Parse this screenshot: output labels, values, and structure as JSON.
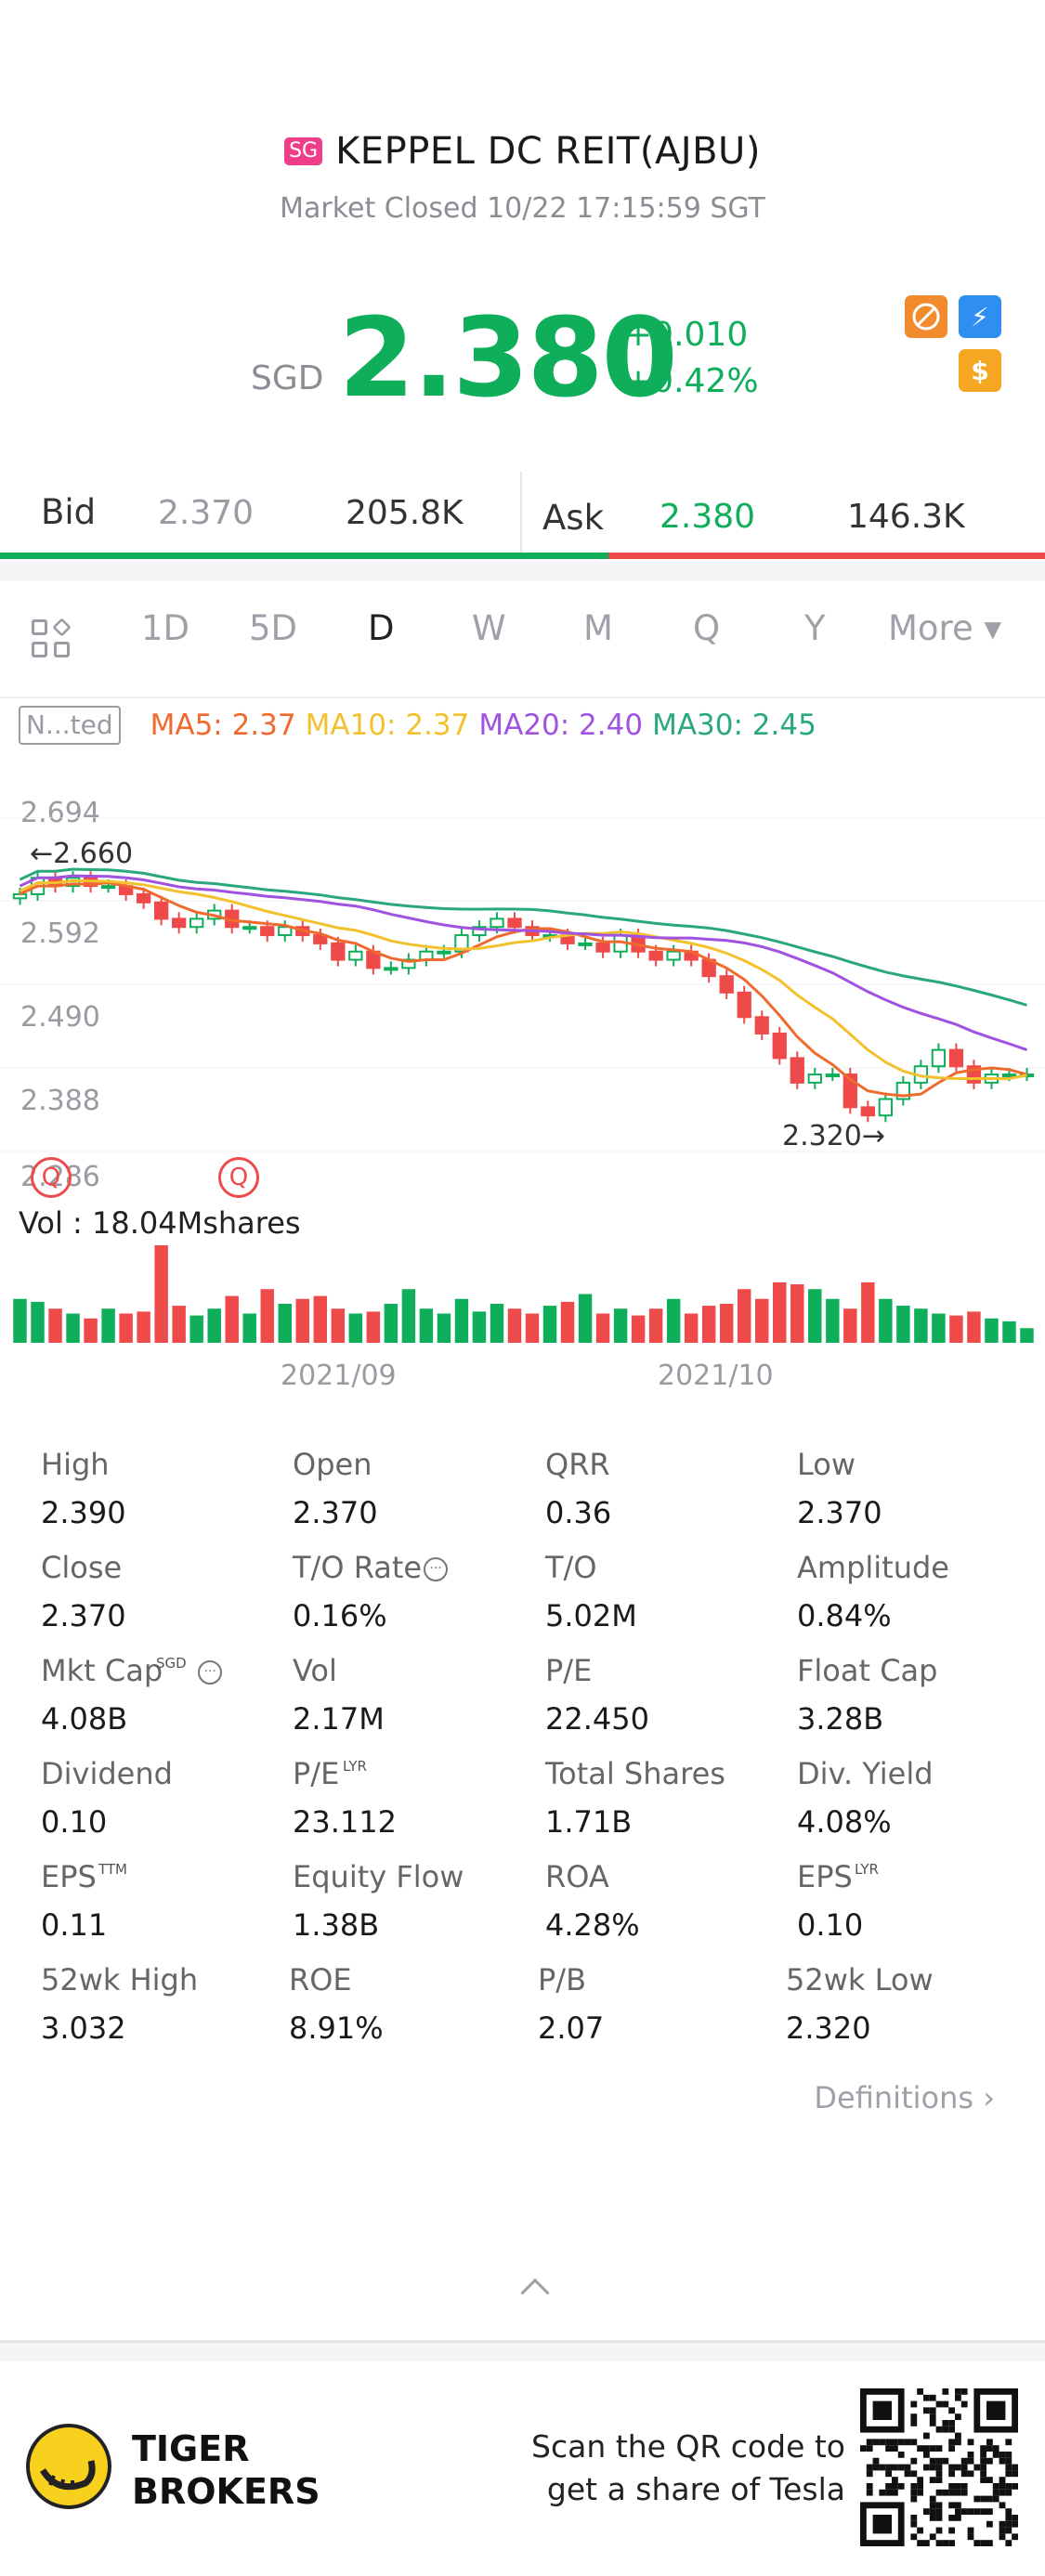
{
  "header": {
    "market_flag": "SG",
    "name": "KEPPEL DC REIT(AJBU)",
    "status": "Market Closed 10/22 17:15:59 SGT",
    "currency": "SGD",
    "price": "2.380",
    "change_abs": "+0.010",
    "change_pct": "+0.42%",
    "icons": [
      "no-short-icon",
      "lightning-level1-icon",
      "dollar-icon"
    ]
  },
  "bidask": {
    "bid_label": "Bid",
    "bid_price": "2.370",
    "bid_size": "205.8K",
    "ask_label": "Ask",
    "ask_price": "2.380",
    "ask_size": "146.3K"
  },
  "tabs": [
    "1D",
    "5D",
    "D",
    "W",
    "M",
    "Q",
    "Y",
    "More ▾"
  ],
  "active_tab": "D",
  "indicators": {
    "mode": "N...ted",
    "ma5": "MA5: 2.37",
    "ma10": "MA10: 2.37",
    "ma20": "MA20: 2.40",
    "ma30": "MA30: 2.45"
  },
  "colors": {
    "up": "#0fae5a",
    "down": "#ef4a4a",
    "ma5": "#f06a2e",
    "ma10": "#f2c12e",
    "ma20": "#a052e0",
    "ma30": "#2aa87c"
  },
  "chart_data": {
    "type": "candlestick",
    "y_ticks": [
      "2.694",
      "2.592",
      "2.490",
      "2.388",
      "2.286"
    ],
    "ylim": [
      2.286,
      2.694
    ],
    "x_ticks": [
      "2021/09",
      "2021/10"
    ],
    "high_marker": "2.660",
    "low_marker": "2.320",
    "volume_label": "Vol  : 18.04Mshares",
    "closes": [
      2.6,
      2.62,
      2.61,
      2.62,
      2.61,
      2.61,
      2.6,
      2.59,
      2.57,
      2.56,
      2.57,
      2.58,
      2.56,
      2.56,
      2.55,
      2.56,
      2.55,
      2.54,
      2.52,
      2.53,
      2.51,
      2.51,
      2.52,
      2.53,
      2.53,
      2.55,
      2.56,
      2.57,
      2.56,
      2.55,
      2.55,
      2.54,
      2.54,
      2.53,
      2.55,
      2.53,
      2.52,
      2.53,
      2.52,
      2.5,
      2.48,
      2.45,
      2.43,
      2.4,
      2.37,
      2.38,
      2.38,
      2.34,
      2.33,
      2.35,
      2.37,
      2.39,
      2.41,
      2.39,
      2.37,
      2.38,
      2.38,
      2.38
    ],
    "volumes": [
      0.45,
      0.42,
      0.35,
      0.3,
      0.25,
      0.35,
      0.3,
      0.32,
      1.0,
      0.38,
      0.28,
      0.35,
      0.48,
      0.3,
      0.55,
      0.4,
      0.45,
      0.48,
      0.35,
      0.3,
      0.32,
      0.4,
      0.55,
      0.35,
      0.3,
      0.45,
      0.32,
      0.4,
      0.35,
      0.3,
      0.38,
      0.42,
      0.5,
      0.3,
      0.35,
      0.28,
      0.35,
      0.45,
      0.3,
      0.38,
      0.4,
      0.55,
      0.45,
      0.62,
      0.6,
      0.55,
      0.45,
      0.35,
      0.62,
      0.45,
      0.38,
      0.35,
      0.3,
      0.28,
      0.32,
      0.25,
      0.22,
      0.15
    ],
    "q_markers": [
      "Q",
      "Q"
    ]
  },
  "stats": [
    {
      "k": "High",
      "v": "2.390"
    },
    {
      "k": "Open",
      "v": "2.370"
    },
    {
      "k": "QRR",
      "v": "0.36"
    },
    {
      "k": "Low",
      "v": "2.370"
    },
    {
      "k": "Close",
      "v": "2.370"
    },
    {
      "k": "T/O Rate",
      "v": "0.16%"
    },
    {
      "k": "T/O",
      "v": "5.02M"
    },
    {
      "k": "Amplitude",
      "v": "0.84%"
    },
    {
      "k": "Mkt Cap",
      "v": "4.08B"
    },
    {
      "k": "Vol",
      "v": "2.17M"
    },
    {
      "k": "P/E",
      "v": "22.450"
    },
    {
      "k": "Float Cap",
      "v": "3.28B"
    },
    {
      "k": "Dividend",
      "v": "0.10"
    },
    {
      "k": "P/E",
      "v": "23.112"
    },
    {
      "k": "Total Shares",
      "v": "1.71B"
    },
    {
      "k": "Div. Yield",
      "v": "4.08%"
    },
    {
      "k": "EPS",
      "v": "0.11"
    },
    {
      "k": "Equity Flow",
      "v": "1.38B"
    },
    {
      "k": "ROA",
      "v": "4.28%"
    },
    {
      "k": "EPS",
      "v": "0.10"
    },
    {
      "k": "52wk High",
      "v": "3.032"
    },
    {
      "k": "ROE",
      "v": "8.91%"
    },
    {
      "k": "P/B",
      "v": "2.07"
    },
    {
      "k": "52wk Low",
      "v": "2.320"
    }
  ],
  "stat_sups": {
    "sgd": "SGD",
    "lyr": "LYR",
    "ttm": "TTM",
    "lyr2": "LYR"
  },
  "definitions": "Definitions",
  "footer": {
    "brand_line1": "TIGER",
    "brand_line2": "BROKERS",
    "scan_line1": "Scan the QR code to",
    "scan_line2": "get a share of Tesla"
  }
}
